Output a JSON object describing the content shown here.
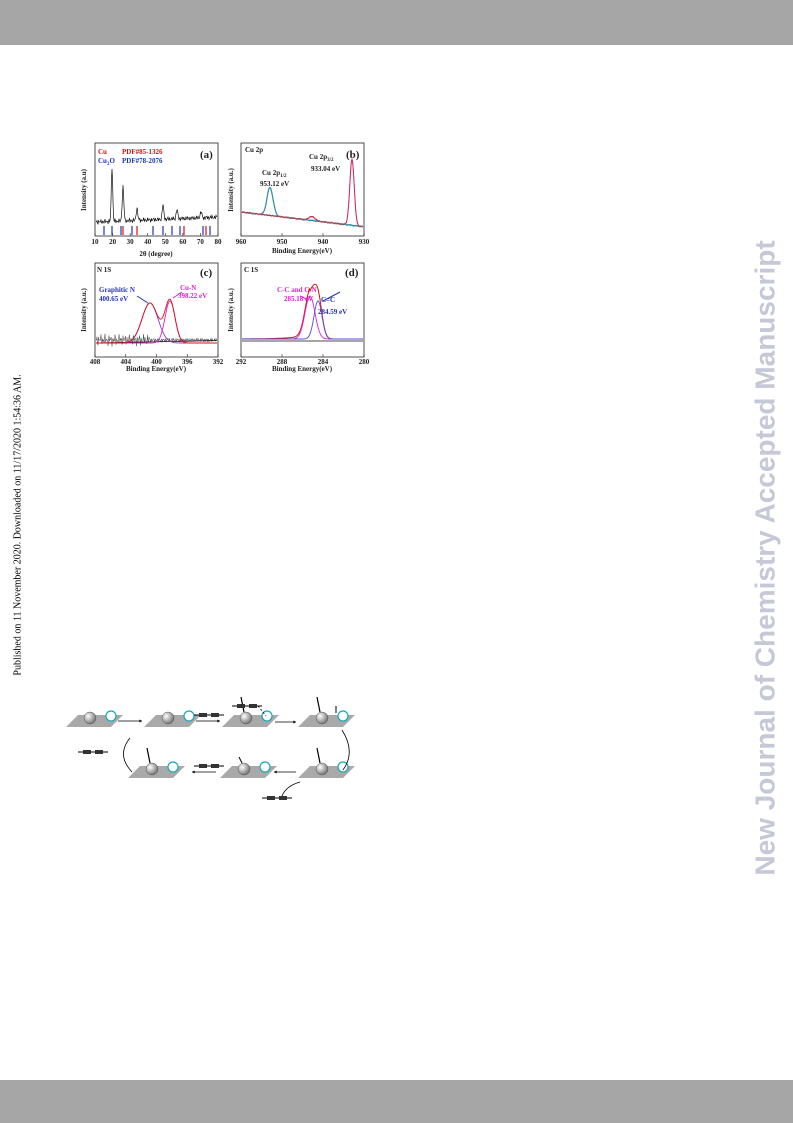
{
  "side_note": "Published on 11 November 2020. Downloaded on 11/17/2020 1:54:36 AM.",
  "watermark": "New Journal of Chemistry Accepted Manuscript",
  "figure": {
    "panels": [
      {
        "label": "(a)",
        "legend": [
          {
            "name": "Cu",
            "ref": "PDF#85-1326"
          },
          {
            "name": "Cu",
            "sub": "2",
            "tail": "O",
            "ref": "PDF#78-2076"
          }
        ],
        "y_label": "Intensity (a.u)",
        "x_label": "2θ (degree)",
        "x_ticks": [
          "10",
          "20",
          "30",
          "40",
          "50",
          "60",
          "70",
          "80"
        ]
      },
      {
        "label": "(b)",
        "corner": "Cu 2p",
        "peaks": [
          {
            "name": "Cu 2p",
            "sub": "3/2",
            "energy": "933.04 eV"
          },
          {
            "name": "Cu 2p",
            "sub": "1/2",
            "energy": "953.12 eV"
          }
        ],
        "y_label": "Intensity (a.u.)",
        "x_label": "Binding Energy(eV)",
        "x_ticks": [
          "960",
          "950",
          "940",
          "930"
        ]
      },
      {
        "label": "(c)",
        "corner": "N 1S",
        "peaks": [
          {
            "name": "Graphitic N",
            "energy": "400.65 eV"
          },
          {
            "name": "Cu-N",
            "energy": "398.22 eV"
          }
        ],
        "y_label": "Intensity (a.u.)",
        "x_label": "Binding Energy(eV)",
        "x_ticks": [
          "408",
          "404",
          "400",
          "396",
          "392"
        ]
      },
      {
        "label": "(d)",
        "corner": "C 1S",
        "peaks": [
          {
            "name": "C-C and C-N",
            "energy": "285.18 eV"
          },
          {
            "name": "C=C",
            "energy": "284.59 eV"
          }
        ],
        "y_label": "Intensity (a.u.)",
        "x_label": "Binding Energy(eV)",
        "x_ticks": [
          "292",
          "288",
          "284",
          "280"
        ]
      }
    ]
  }
}
